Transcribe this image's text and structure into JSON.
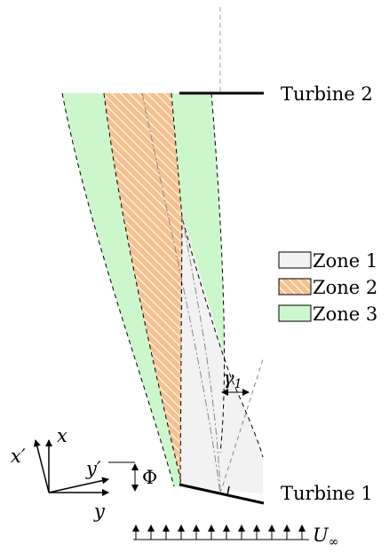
{
  "turbines": {
    "upstream_label": "Turbine 1",
    "downstream_label": "Turbine 2"
  },
  "legend": [
    {
      "label": "Zone 1",
      "fill": "#f2f2f2",
      "hatch": false
    },
    {
      "label": "Zone 2",
      "fill": "#f7c08f",
      "hatch": true
    },
    {
      "label": "Zone 3",
      "fill": "#ccf7cc",
      "hatch": false
    }
  ],
  "axes": {
    "x": "x",
    "y": "y",
    "x_prime": "x",
    "y_prime": "y",
    "prime_mark": "′",
    "angle": "Φ"
  },
  "angle_gamma": {
    "symbol": "γ",
    "subscript": "1"
  },
  "inflow": {
    "symbol": "U",
    "subscript": "∞"
  },
  "colors": {
    "zone1": "#f2f2f2",
    "zone2": "#f7c08f",
    "zone3": "#ccf7cc",
    "hatch": "#ffffff",
    "line": "#000000",
    "dashed": "#555555",
    "axis_centerline": "#999999"
  }
}
